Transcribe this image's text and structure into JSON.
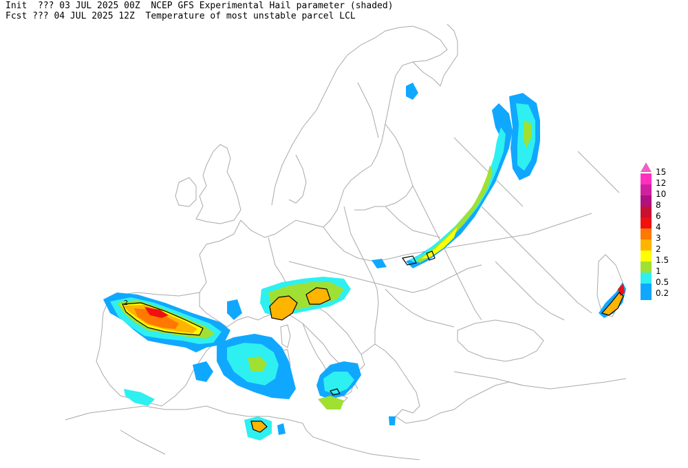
{
  "header": {
    "line1": "Init  ??? 03 JUL 2025 00Z  NCEP GFS Experimental Hail parameter (shaded)",
    "line2": "Fcst ??? 04 JUL 2025 12Z  Temperature of most unstable parcel LCL"
  },
  "legend": {
    "top_arrow_color": "#f060c0",
    "levels": [
      {
        "label": "15",
        "color": "#ff30c0"
      },
      {
        "label": "12",
        "color": "#d020a0"
      },
      {
        "label": "10",
        "color": "#b01080"
      },
      {
        "label": "8",
        "color": "#c81030"
      },
      {
        "label": "6",
        "color": "#f01010"
      },
      {
        "label": "4",
        "color": "#ff7800"
      },
      {
        "label": "3",
        "color": "#ffb400"
      },
      {
        "label": "2",
        "color": "#ffff00"
      },
      {
        "label": "1.5",
        "color": "#a0e032"
      },
      {
        "label": "1",
        "color": "#2ef0f0"
      },
      {
        "label": "0.5",
        "color": "#10a8ff"
      },
      {
        "label": "0.2",
        "color": "#10a8ff"
      }
    ]
  },
  "contour_label": "2",
  "colors": {
    "coastline": "#a8a8a8",
    "contour": "#000000"
  }
}
